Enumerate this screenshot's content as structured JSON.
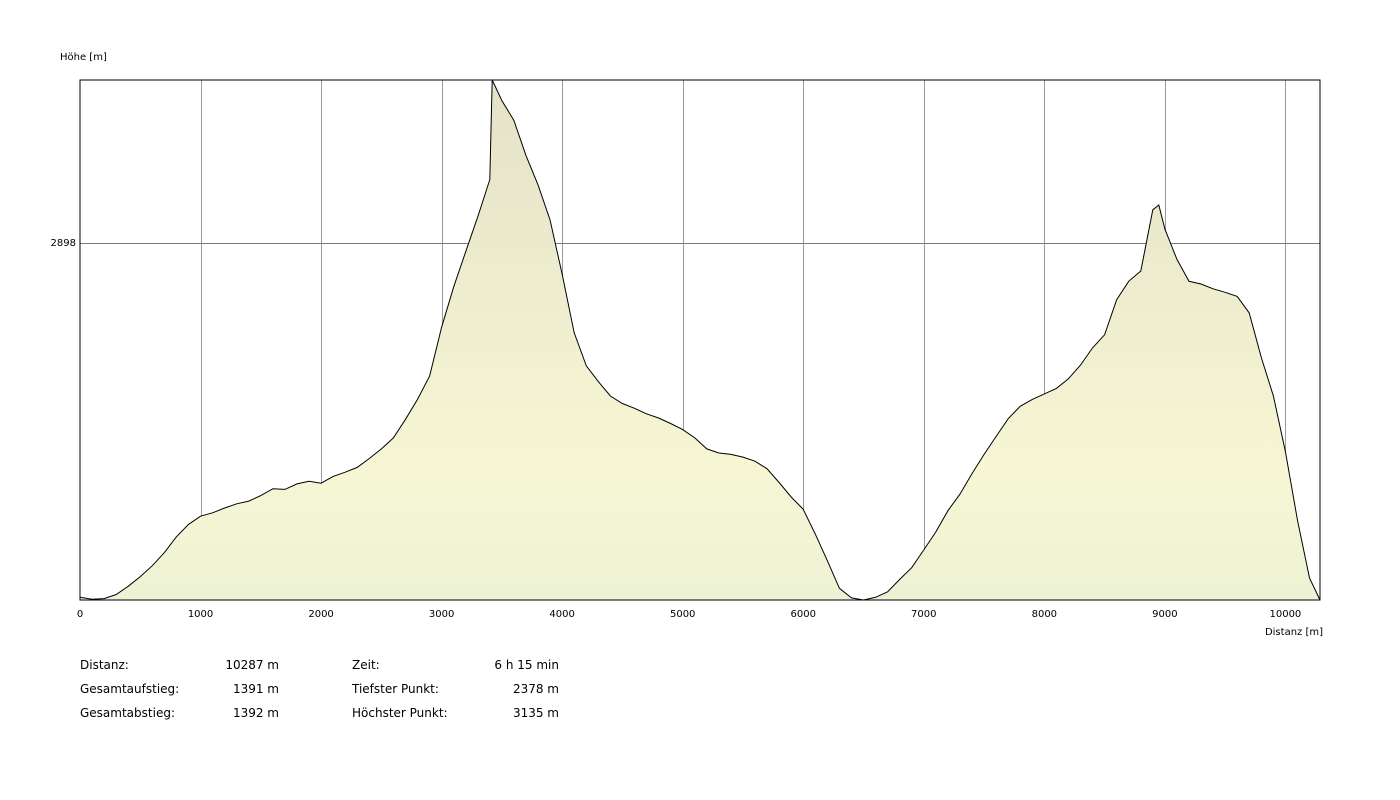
{
  "chart_data": {
    "type": "area",
    "ylabel": "Höhe [m]",
    "xlabel": "Distanz [m]",
    "xlim": [
      0,
      10287
    ],
    "ylim": [
      2378,
      3135
    ],
    "x_ticks": [
      0,
      1000,
      2000,
      3000,
      4000,
      5000,
      6000,
      7000,
      8000,
      9000,
      10000
    ],
    "y_ticks": [
      2898
    ],
    "grid": true,
    "fill_color": "#eeeebb",
    "line_color": "#000000",
    "points": [
      [
        0,
        2382
      ],
      [
        100,
        2379
      ],
      [
        200,
        2380
      ],
      [
        300,
        2386
      ],
      [
        400,
        2398
      ],
      [
        500,
        2412
      ],
      [
        600,
        2428
      ],
      [
        700,
        2447
      ],
      [
        800,
        2470
      ],
      [
        900,
        2488
      ],
      [
        1000,
        2500
      ],
      [
        1100,
        2505
      ],
      [
        1200,
        2512
      ],
      [
        1300,
        2518
      ],
      [
        1400,
        2522
      ],
      [
        1500,
        2530
      ],
      [
        1600,
        2540
      ],
      [
        1700,
        2539
      ],
      [
        1800,
        2547
      ],
      [
        1900,
        2551
      ],
      [
        2000,
        2548
      ],
      [
        2100,
        2558
      ],
      [
        2200,
        2564
      ],
      [
        2300,
        2571
      ],
      [
        2400,
        2584
      ],
      [
        2500,
        2598
      ],
      [
        2600,
        2614
      ],
      [
        2700,
        2641
      ],
      [
        2800,
        2670
      ],
      [
        2900,
        2704
      ],
      [
        3000,
        2775
      ],
      [
        3100,
        2834
      ],
      [
        3200,
        2885
      ],
      [
        3300,
        2936
      ],
      [
        3400,
        2990
      ],
      [
        3420,
        3135
      ],
      [
        3500,
        3105
      ],
      [
        3600,
        3076
      ],
      [
        3700,
        3025
      ],
      [
        3800,
        2982
      ],
      [
        3900,
        2931
      ],
      [
        4000,
        2852
      ],
      [
        4100,
        2767
      ],
      [
        4200,
        2719
      ],
      [
        4300,
        2696
      ],
      [
        4400,
        2675
      ],
      [
        4500,
        2664
      ],
      [
        4600,
        2657
      ],
      [
        4700,
        2649
      ],
      [
        4800,
        2643
      ],
      [
        4900,
        2635
      ],
      [
        5000,
        2626
      ],
      [
        5100,
        2614
      ],
      [
        5200,
        2598
      ],
      [
        5300,
        2592
      ],
      [
        5400,
        2590
      ],
      [
        5500,
        2586
      ],
      [
        5600,
        2580
      ],
      [
        5700,
        2569
      ],
      [
        5800,
        2549
      ],
      [
        5900,
        2528
      ],
      [
        6000,
        2510
      ],
      [
        6100,
        2474
      ],
      [
        6200,
        2435
      ],
      [
        6300,
        2395
      ],
      [
        6400,
        2381
      ],
      [
        6500,
        2378
      ],
      [
        6600,
        2382
      ],
      [
        6700,
        2390
      ],
      [
        6800,
        2408
      ],
      [
        6900,
        2425
      ],
      [
        7000,
        2451
      ],
      [
        7100,
        2477
      ],
      [
        7200,
        2508
      ],
      [
        7300,
        2532
      ],
      [
        7400,
        2562
      ],
      [
        7500,
        2590
      ],
      [
        7600,
        2616
      ],
      [
        7700,
        2642
      ],
      [
        7800,
        2660
      ],
      [
        7900,
        2670
      ],
      [
        8000,
        2678
      ],
      [
        8100,
        2686
      ],
      [
        8200,
        2700
      ],
      [
        8300,
        2720
      ],
      [
        8400,
        2745
      ],
      [
        8500,
        2764
      ],
      [
        8600,
        2815
      ],
      [
        8700,
        2842
      ],
      [
        8800,
        2857
      ],
      [
        8900,
        2946
      ],
      [
        8950,
        2953
      ],
      [
        9000,
        2918
      ],
      [
        9100,
        2874
      ],
      [
        9200,
        2842
      ],
      [
        9300,
        2838
      ],
      [
        9400,
        2831
      ],
      [
        9500,
        2826
      ],
      [
        9600,
        2820
      ],
      [
        9700,
        2796
      ],
      [
        9800,
        2731
      ],
      [
        9900,
        2675
      ],
      [
        10000,
        2594
      ],
      [
        10100,
        2494
      ],
      [
        10200,
        2410
      ],
      [
        10287,
        2378
      ]
    ]
  },
  "stats": {
    "distanz_label": "Distanz:",
    "distanz_value": "10287 m",
    "aufstieg_label": "Gesamtaufstieg:",
    "aufstieg_value": "1391 m",
    "abstieg_label": "Gesamtabstieg:",
    "abstieg_value": "1392 m",
    "zeit_label": "Zeit:",
    "zeit_value": "6 h 15 min",
    "tief_label": "Tiefster Punkt:",
    "tief_value": "2378 m",
    "hoch_label": "Höchster Punkt:",
    "hoch_value": "3135 m"
  }
}
